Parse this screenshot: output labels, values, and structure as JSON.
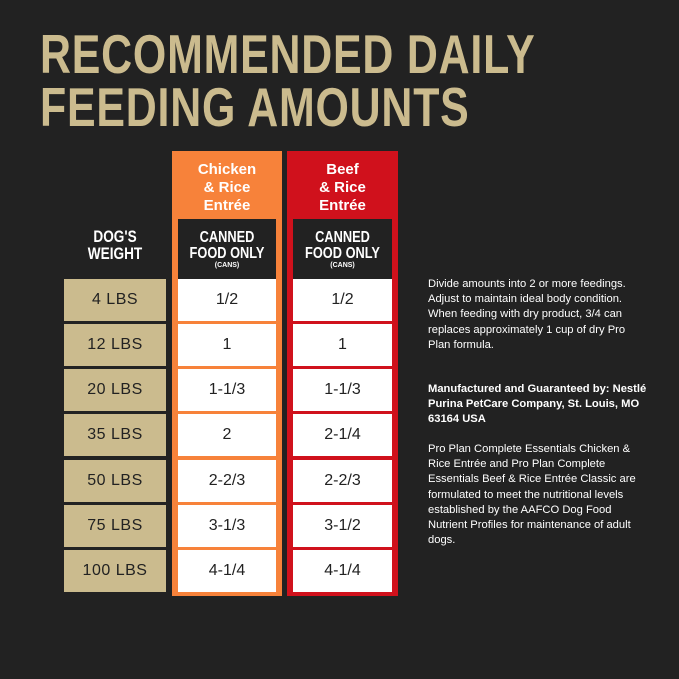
{
  "title": {
    "line1": "RECOMMENDED DAILY",
    "line2": "FEEDING AMOUNTS"
  },
  "colors": {
    "background": "#222222",
    "gold": "#cbbb8e",
    "chicken": "#f7823a",
    "beef": "#d0111c"
  },
  "weight_header": {
    "line1": "DOG'S",
    "line2": "WEIGHT"
  },
  "weights": [
    "4 LBS",
    "12 LBS",
    "20 LBS",
    "35 LBS",
    "50 LBS",
    "75 LBS",
    "100 LBS"
  ],
  "columns": [
    {
      "name_lines": [
        "Chicken",
        "& Rice",
        "Entrée"
      ],
      "sub_line1": "CANNED",
      "sub_line2": "FOOD ONLY",
      "unit": "(CANS)",
      "values": [
        "1/2",
        "1",
        "1-1/3",
        "2",
        "2-2/3",
        "3-1/3",
        "4-1/4"
      ]
    },
    {
      "name_lines": [
        "Beef",
        "& Rice",
        "Entrée"
      ],
      "sub_line1": "CANNED",
      "sub_line2": "FOOD ONLY",
      "unit": "(CANS)",
      "values": [
        "1/2",
        "1",
        "1-1/3",
        "2-1/4",
        "2-2/3",
        "3-1/2",
        "4-1/4"
      ]
    }
  ],
  "notes": {
    "p1": "Divide amounts into 2 or more feedings. Adjust to maintain ideal body condition. When feeding with dry product, 3/4 can replaces approximately 1 cup of dry Pro Plan formula.",
    "p2": "Manufactured and Guaranteed by: Nestlé Purina PetCare Company, St. Louis, MO 63164 USA",
    "p3": "Pro Plan Complete Essentials Chicken & Rice Entrée and Pro Plan Complete Essentials Beef & Rice Entrée Classic are formulated to meet the nutritional levels established by the AAFCO Dog Food Nutrient Profiles for maintenance of adult dogs."
  }
}
